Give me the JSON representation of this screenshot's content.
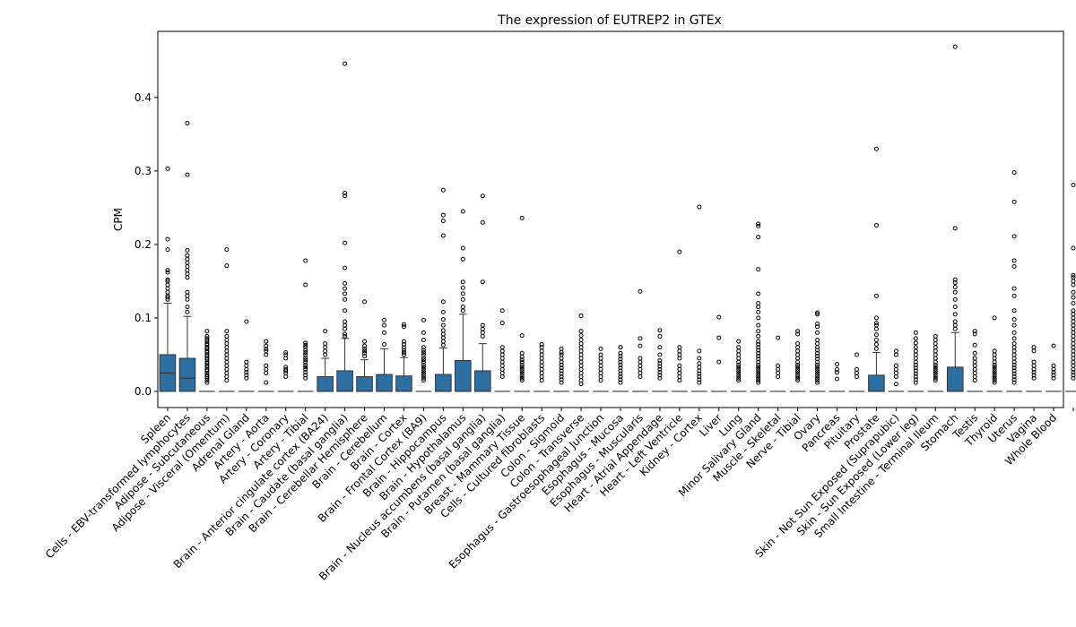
{
  "chart_data": {
    "type": "box",
    "title": "The expression of EUTREP2 in GTEx",
    "xlabel": "",
    "ylabel": "CPM",
    "ylim": [
      -0.022,
      0.49
    ],
    "yticks": [
      0.0,
      0.1,
      0.2,
      0.3,
      0.4
    ],
    "ytick_labels": [
      "0.0",
      "0.1",
      "0.2",
      "0.3",
      "0.4"
    ],
    "grid": false,
    "box_color": "#2e6fa3",
    "categories": [
      "Spleen",
      "Cells - EBV-transformed lymphocytes",
      "Adipose - Subcutaneous",
      "Adipose - Visceral (Omentum)",
      "Adrenal Gland",
      "Artery - Aorta",
      "Artery - Coronary",
      "Artery - Tibial",
      "Brain - Anterior cingulate cortex (BA24)",
      "Brain - Caudate (basal ganglia)",
      "Brain - Cerebellar Hemisphere",
      "Brain - Cerebellum",
      "Brain - Cortex",
      "Brain - Frontal Cortex (BA9)",
      "Brain - Hippocampus",
      "Brain - Hypothalamus",
      "Brain - Nucleus accumbens (basal ganglia)",
      "Brain - Putamen (basal ganglia)",
      "Breast - Mammary Tissue",
      "Cells - Cultured fibroblasts",
      "Colon - Sigmoid",
      "Colon - Transverse",
      "Esophagus - Gastroesophageal Junction",
      "Esophagus - Mucosa",
      "Esophagus - Muscularis",
      "Heart - Atrial Appendage",
      "Heart - Left Ventricle",
      "Kidney - Cortex",
      "Liver",
      "Lung",
      "Minor Salivary Gland",
      "Muscle - Skeletal",
      "Nerve - Tibial",
      "Ovary",
      "Pancreas",
      "Pituitary",
      "Prostate",
      "Skin - Not Sun Exposed (Suprapubic)",
      "Skin - Sun Exposed (Lower leg)",
      "Small Intestine - Terminal Ileum",
      "Stomach",
      "Testis",
      "Thyroid",
      "Uterus",
      "Vagina",
      "Whole Blood"
    ],
    "boxes": [
      {
        "q1": 0.0,
        "median": 0.025,
        "q3": 0.05,
        "whisker_low": 0.0,
        "whisker_high": 0.12,
        "outliers": [
          0.125,
          0.128,
          0.13,
          0.135,
          0.14,
          0.145,
          0.15,
          0.152,
          0.162,
          0.165,
          0.193,
          0.207,
          0.303
        ]
      },
      {
        "q1": 0.0,
        "median": 0.018,
        "q3": 0.045,
        "whisker_low": 0.0,
        "whisker_high": 0.102,
        "outliers": [
          0.108,
          0.115,
          0.125,
          0.13,
          0.135,
          0.155,
          0.16,
          0.165,
          0.17,
          0.175,
          0.18,
          0.185,
          0.192,
          0.295,
          0.365
        ]
      },
      {
        "q1": 0.0,
        "median": 0.0,
        "q3": 0.0,
        "whisker_low": 0.0,
        "whisker_high": 0.0,
        "outliers": [
          0.012,
          0.015,
          0.018,
          0.02,
          0.022,
          0.025,
          0.028,
          0.03,
          0.033,
          0.035,
          0.038,
          0.04,
          0.043,
          0.045,
          0.048,
          0.05,
          0.053,
          0.055,
          0.058,
          0.06,
          0.063,
          0.065,
          0.068,
          0.07,
          0.072,
          0.075,
          0.082
        ]
      },
      {
        "q1": 0.0,
        "median": 0.0,
        "q3": 0.0,
        "whisker_low": 0.0,
        "whisker_high": 0.0,
        "outliers": [
          0.015,
          0.02,
          0.025,
          0.03,
          0.035,
          0.04,
          0.045,
          0.05,
          0.055,
          0.06,
          0.065,
          0.07,
          0.075,
          0.082,
          0.171,
          0.193
        ]
      },
      {
        "q1": 0.0,
        "median": 0.0,
        "q3": 0.0,
        "whisker_low": 0.0,
        "whisker_high": 0.0,
        "outliers": [
          0.018,
          0.022,
          0.026,
          0.03,
          0.035,
          0.04,
          0.095
        ]
      },
      {
        "q1": 0.0,
        "median": 0.0,
        "q3": 0.0,
        "whisker_low": 0.0,
        "whisker_high": 0.0,
        "outliers": [
          0.012,
          0.025,
          0.03,
          0.035,
          0.05,
          0.055,
          0.058,
          0.062,
          0.068
        ]
      },
      {
        "q1": 0.0,
        "median": 0.0,
        "q3": 0.0,
        "whisker_low": 0.0,
        "whisker_high": 0.0,
        "outliers": [
          0.02,
          0.025,
          0.028,
          0.03,
          0.033,
          0.045,
          0.05,
          0.053
        ]
      },
      {
        "q1": 0.0,
        "median": 0.0,
        "q3": 0.0,
        "whisker_low": 0.0,
        "whisker_high": 0.0,
        "outliers": [
          0.018,
          0.022,
          0.026,
          0.03,
          0.033,
          0.036,
          0.04,
          0.043,
          0.046,
          0.05,
          0.053,
          0.056,
          0.06,
          0.063,
          0.066,
          0.145,
          0.178
        ]
      },
      {
        "q1": 0.0,
        "median": 0.0,
        "q3": 0.02,
        "whisker_low": 0.0,
        "whisker_high": 0.045,
        "outliers": [
          0.05,
          0.055,
          0.06,
          0.065,
          0.082
        ]
      },
      {
        "q1": 0.0,
        "median": 0.0,
        "q3": 0.028,
        "whisker_low": 0.0,
        "whisker_high": 0.072,
        "outliers": [
          0.075,
          0.078,
          0.085,
          0.09,
          0.095,
          0.11,
          0.125,
          0.133,
          0.14,
          0.147,
          0.168,
          0.202,
          0.266,
          0.27,
          0.446
        ]
      },
      {
        "q1": 0.0,
        "median": 0.0,
        "q3": 0.02,
        "whisker_low": 0.0,
        "whisker_high": 0.043,
        "outliers": [
          0.048,
          0.052,
          0.055,
          0.058,
          0.062,
          0.068,
          0.122
        ]
      },
      {
        "q1": 0.0,
        "median": 0.0,
        "q3": 0.023,
        "whisker_low": 0.0,
        "whisker_high": 0.058,
        "outliers": [
          0.064,
          0.08,
          0.09,
          0.097
        ]
      },
      {
        "q1": 0.0,
        "median": 0.0,
        "q3": 0.021,
        "whisker_low": 0.0,
        "whisker_high": 0.046,
        "outliers": [
          0.05,
          0.053,
          0.056,
          0.06,
          0.064,
          0.068,
          0.088,
          0.091
        ]
      },
      {
        "q1": 0.0,
        "median": 0.0,
        "q3": 0.0,
        "whisker_low": 0.0,
        "whisker_high": 0.0,
        "outliers": [
          0.015,
          0.018,
          0.021,
          0.024,
          0.027,
          0.03,
          0.033,
          0.036,
          0.04,
          0.043,
          0.046,
          0.05,
          0.053,
          0.056,
          0.06,
          0.07,
          0.08,
          0.097
        ]
      },
      {
        "q1": 0.0,
        "median": 0.0,
        "q3": 0.023,
        "whisker_low": 0.0,
        "whisker_high": 0.059,
        "outliers": [
          0.063,
          0.068,
          0.073,
          0.078,
          0.083,
          0.09,
          0.098,
          0.108,
          0.122,
          0.212,
          0.232,
          0.24,
          0.274
        ]
      },
      {
        "q1": 0.0,
        "median": 0.0,
        "q3": 0.042,
        "whisker_low": 0.0,
        "whisker_high": 0.105,
        "outliers": [
          0.11,
          0.115,
          0.125,
          0.133,
          0.141,
          0.149,
          0.18,
          0.195,
          0.245
        ]
      },
      {
        "q1": 0.0,
        "median": 0.0,
        "q3": 0.028,
        "whisker_low": 0.0,
        "whisker_high": 0.065,
        "outliers": [
          0.075,
          0.08,
          0.085,
          0.09,
          0.149,
          0.23,
          0.266
        ]
      },
      {
        "q1": 0.0,
        "median": 0.0,
        "q3": 0.0,
        "whisker_low": 0.0,
        "whisker_high": 0.0,
        "outliers": [
          0.02,
          0.025,
          0.03,
          0.035,
          0.04,
          0.045,
          0.05,
          0.055,
          0.06,
          0.093,
          0.11
        ]
      },
      {
        "q1": 0.0,
        "median": 0.0,
        "q3": 0.0,
        "whisker_low": 0.0,
        "whisker_high": 0.0,
        "outliers": [
          0.015,
          0.018,
          0.021,
          0.024,
          0.027,
          0.03,
          0.033,
          0.036,
          0.04,
          0.043,
          0.047,
          0.052,
          0.076,
          0.236
        ]
      },
      {
        "q1": 0.0,
        "median": 0.0,
        "q3": 0.0,
        "whisker_low": 0.0,
        "whisker_high": 0.0,
        "outliers": [
          0.015,
          0.02,
          0.025,
          0.03,
          0.035,
          0.04,
          0.045,
          0.05,
          0.055,
          0.06,
          0.064
        ]
      },
      {
        "q1": 0.0,
        "median": 0.0,
        "q3": 0.0,
        "whisker_low": 0.0,
        "whisker_high": 0.0,
        "outliers": [
          0.012,
          0.016,
          0.02,
          0.024,
          0.028,
          0.032,
          0.036,
          0.04,
          0.045,
          0.05,
          0.053,
          0.058
        ]
      },
      {
        "q1": 0.0,
        "median": 0.0,
        "q3": 0.0,
        "whisker_low": 0.0,
        "whisker_high": 0.0,
        "outliers": [
          0.01,
          0.015,
          0.02,
          0.025,
          0.03,
          0.035,
          0.04,
          0.045,
          0.05,
          0.055,
          0.06,
          0.065,
          0.07,
          0.076,
          0.082,
          0.103
        ]
      },
      {
        "q1": 0.0,
        "median": 0.0,
        "q3": 0.0,
        "whisker_low": 0.0,
        "whisker_high": 0.0,
        "outliers": [
          0.015,
          0.02,
          0.025,
          0.03,
          0.035,
          0.04,
          0.045,
          0.05,
          0.058
        ]
      },
      {
        "q1": 0.0,
        "median": 0.0,
        "q3": 0.0,
        "whisker_low": 0.0,
        "whisker_high": 0.0,
        "outliers": [
          0.012,
          0.016,
          0.02,
          0.024,
          0.028,
          0.032,
          0.036,
          0.04,
          0.044,
          0.048,
          0.052,
          0.06,
          0.06
        ]
      },
      {
        "q1": 0.0,
        "median": 0.0,
        "q3": 0.0,
        "whisker_low": 0.0,
        "whisker_high": 0.0,
        "outliers": [
          0.02,
          0.025,
          0.03,
          0.035,
          0.04,
          0.045,
          0.062,
          0.072,
          0.136
        ]
      },
      {
        "q1": 0.0,
        "median": 0.0,
        "q3": 0.0,
        "whisker_low": 0.0,
        "whisker_high": 0.0,
        "outliers": [
          0.018,
          0.022,
          0.026,
          0.03,
          0.034,
          0.038,
          0.042,
          0.05,
          0.06,
          0.075,
          0.083
        ]
      },
      {
        "q1": 0.0,
        "median": 0.0,
        "q3": 0.0,
        "whisker_low": 0.0,
        "whisker_high": 0.0,
        "outliers": [
          0.015,
          0.02,
          0.025,
          0.03,
          0.035,
          0.045,
          0.05,
          0.055,
          0.06,
          0.19
        ]
      },
      {
        "q1": 0.0,
        "median": 0.0,
        "q3": 0.0,
        "whisker_low": 0.0,
        "whisker_high": 0.0,
        "outliers": [
          0.012,
          0.016,
          0.02,
          0.024,
          0.028,
          0.033,
          0.038,
          0.045,
          0.055,
          0.251
        ]
      },
      {
        "q1": 0.0,
        "median": 0.0,
        "q3": 0.0,
        "whisker_low": 0.0,
        "whisker_high": 0.0,
        "outliers": [
          0.04,
          0.073,
          0.101
        ]
      },
      {
        "q1": 0.0,
        "median": 0.0,
        "q3": 0.0,
        "whisker_low": 0.0,
        "whisker_high": 0.0,
        "outliers": [
          0.015,
          0.018,
          0.021,
          0.024,
          0.027,
          0.03,
          0.033,
          0.036,
          0.04,
          0.045,
          0.05,
          0.055,
          0.06,
          0.068
        ]
      },
      {
        "q1": 0.0,
        "median": 0.0,
        "q3": 0.0,
        "whisker_low": 0.0,
        "whisker_high": 0.0,
        "outliers": [
          0.012,
          0.015,
          0.018,
          0.021,
          0.024,
          0.027,
          0.03,
          0.033,
          0.036,
          0.04,
          0.044,
          0.048,
          0.052,
          0.056,
          0.06,
          0.064,
          0.068,
          0.075,
          0.082,
          0.09,
          0.1,
          0.108,
          0.115,
          0.12,
          0.133,
          0.166,
          0.21,
          0.225,
          0.228
        ]
      },
      {
        "q1": 0.0,
        "median": 0.0,
        "q3": 0.0,
        "whisker_low": 0.0,
        "whisker_high": 0.0,
        "outliers": [
          0.02,
          0.025,
          0.03,
          0.035,
          0.073
        ]
      },
      {
        "q1": 0.0,
        "median": 0.0,
        "q3": 0.0,
        "whisker_low": 0.0,
        "whisker_high": 0.0,
        "outliers": [
          0.015,
          0.018,
          0.021,
          0.024,
          0.027,
          0.03,
          0.033,
          0.036,
          0.04,
          0.045,
          0.05,
          0.055,
          0.06,
          0.065,
          0.078,
          0.082
        ]
      },
      {
        "q1": 0.0,
        "median": 0.0,
        "q3": 0.0,
        "whisker_low": 0.0,
        "whisker_high": 0.0,
        "outliers": [
          0.012,
          0.015,
          0.018,
          0.021,
          0.024,
          0.027,
          0.03,
          0.033,
          0.036,
          0.04,
          0.044,
          0.048,
          0.052,
          0.056,
          0.06,
          0.065,
          0.07,
          0.08,
          0.088,
          0.092,
          0.105,
          0.107
        ]
      },
      {
        "q1": 0.0,
        "median": 0.0,
        "q3": 0.0,
        "whisker_low": 0.0,
        "whisker_high": 0.0,
        "outliers": [
          0.017,
          0.026,
          0.03,
          0.037
        ]
      },
      {
        "q1": 0.0,
        "median": 0.0,
        "q3": 0.0,
        "whisker_low": 0.0,
        "whisker_high": 0.0,
        "outliers": [
          0.02,
          0.025,
          0.03,
          0.05
        ]
      },
      {
        "q1": 0.0,
        "median": 0.0,
        "q3": 0.022,
        "whisker_low": 0.0,
        "whisker_high": 0.053,
        "outliers": [
          0.058,
          0.064,
          0.07,
          0.077,
          0.085,
          0.09,
          0.093,
          0.1,
          0.13,
          0.226,
          0.33
        ]
      },
      {
        "q1": 0.0,
        "median": 0.0,
        "q3": 0.0,
        "whisker_low": 0.0,
        "whisker_high": 0.0,
        "outliers": [
          0.01,
          0.02,
          0.025,
          0.03,
          0.035,
          0.05,
          0.055
        ]
      },
      {
        "q1": 0.0,
        "median": 0.0,
        "q3": 0.0,
        "whisker_low": 0.0,
        "whisker_high": 0.0,
        "outliers": [
          0.012,
          0.016,
          0.02,
          0.024,
          0.028,
          0.032,
          0.036,
          0.04,
          0.045,
          0.05,
          0.055,
          0.06,
          0.066,
          0.072,
          0.08
        ]
      },
      {
        "q1": 0.0,
        "median": 0.0,
        "q3": 0.0,
        "whisker_low": 0.0,
        "whisker_high": 0.0,
        "outliers": [
          0.015,
          0.018,
          0.021,
          0.024,
          0.027,
          0.03,
          0.033,
          0.036,
          0.04,
          0.045,
          0.05,
          0.055,
          0.06,
          0.065,
          0.07,
          0.075
        ]
      },
      {
        "q1": 0.0,
        "median": 0.0,
        "q3": 0.033,
        "whisker_low": 0.0,
        "whisker_high": 0.08,
        "outliers": [
          0.085,
          0.09,
          0.095,
          0.105,
          0.115,
          0.125,
          0.135,
          0.142,
          0.148,
          0.152,
          0.222,
          0.469
        ]
      },
      {
        "q1": 0.0,
        "median": 0.0,
        "q3": 0.0,
        "whisker_low": 0.0,
        "whisker_high": 0.0,
        "outliers": [
          0.015,
          0.02,
          0.025,
          0.03,
          0.035,
          0.04,
          0.045,
          0.052,
          0.063,
          0.078,
          0.082
        ]
      },
      {
        "q1": 0.0,
        "median": 0.0,
        "q3": 0.0,
        "whisker_low": 0.0,
        "whisker_high": 0.0,
        "outliers": [
          0.012,
          0.015,
          0.018,
          0.021,
          0.024,
          0.027,
          0.03,
          0.033,
          0.036,
          0.04,
          0.045,
          0.05,
          0.055,
          0.1
        ]
      },
      {
        "q1": 0.0,
        "median": 0.0,
        "q3": 0.0,
        "whisker_low": 0.0,
        "whisker_high": 0.0,
        "outliers": [
          0.012,
          0.016,
          0.02,
          0.024,
          0.028,
          0.032,
          0.036,
          0.04,
          0.045,
          0.05,
          0.055,
          0.06,
          0.065,
          0.072,
          0.08,
          0.09,
          0.098,
          0.11,
          0.13,
          0.14,
          0.17,
          0.178,
          0.211,
          0.258,
          0.298
        ]
      },
      {
        "q1": 0.0,
        "median": 0.0,
        "q3": 0.0,
        "whisker_low": 0.0,
        "whisker_high": 0.0,
        "outliers": [
          0.018,
          0.022,
          0.026,
          0.03,
          0.035,
          0.04,
          0.055,
          0.06
        ]
      },
      {
        "q1": 0.0,
        "median": 0.0,
        "q3": 0.0,
        "whisker_low": 0.0,
        "whisker_high": 0.0,
        "outliers": [
          0.018,
          0.022,
          0.026,
          0.03,
          0.035,
          0.062
        ]
      },
      {
        "q1": 0.0,
        "median": 0.0,
        "q3": 0.0,
        "whisker_low": 0.0,
        "whisker_high": 0.0,
        "outliers": [
          0.018,
          0.022,
          0.026,
          0.03,
          0.035,
          0.04,
          0.045,
          0.05,
          0.055,
          0.06,
          0.065,
          0.07,
          0.075,
          0.08,
          0.085,
          0.09,
          0.095,
          0.1,
          0.105,
          0.11,
          0.12,
          0.128,
          0.135,
          0.145,
          0.15,
          0.155,
          0.158,
          0.195,
          0.281
        ]
      }
    ]
  }
}
